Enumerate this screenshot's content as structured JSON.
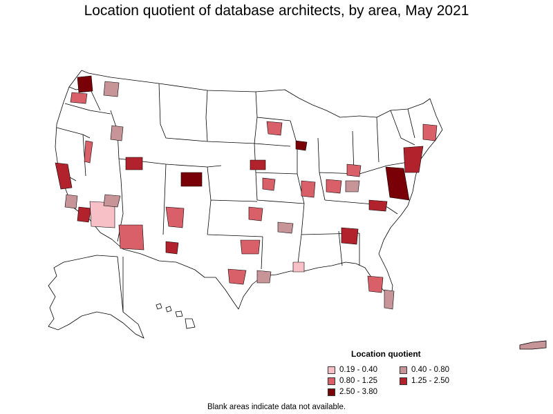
{
  "title": "Location quotient of database architects, by area, May 2021",
  "legend": {
    "title": "Location quotient",
    "items": [
      {
        "label": "0.19 - 0.40",
        "color": "#f7bfc6"
      },
      {
        "label": "0.40 - 0.80",
        "color": "#c79597"
      },
      {
        "label": "0.80 - 1.25",
        "color": "#d95f68"
      },
      {
        "label": "1.25 - 2.50",
        "color": "#b2222c"
      },
      {
        "label": "2.50 - 3.80",
        "color": "#7a0008"
      }
    ]
  },
  "footnote": "Blank areas indicate data not available."
}
